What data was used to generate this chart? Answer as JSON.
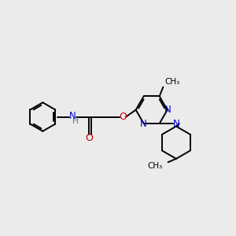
{
  "background_color": "#ebebeb",
  "bond_color": "#000000",
  "N_color": "#0000cc",
  "O_color": "#cc0000",
  "H_color": "#2e8b57",
  "figsize": [
    3.0,
    3.0
  ],
  "dpi": 100,
  "xlim": [
    0,
    10
  ],
  "ylim": [
    0,
    10
  ]
}
